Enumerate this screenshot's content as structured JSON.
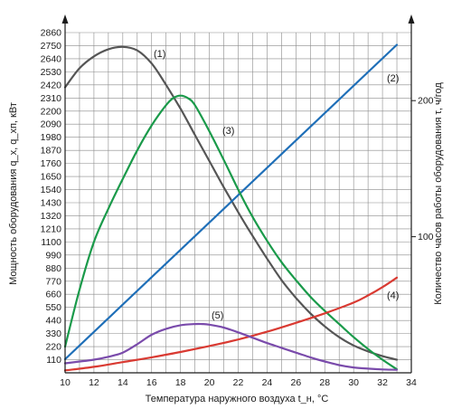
{
  "chart_data": {
    "type": "line",
    "xlabel": "Температура наружного воздуха t_н, °С",
    "ylabel_left": "Мощность оборудования q_х, q_хп, кВт",
    "ylabel_right": "Количество часов работы оборудования τ, ч/год",
    "xlim": [
      10,
      34
    ],
    "ylim_left": [
      0,
      2860
    ],
    "ylim_right": [
      0,
      250
    ],
    "x_ticks": [
      10,
      12,
      14,
      16,
      18,
      20,
      22,
      24,
      26,
      28,
      30,
      32,
      34
    ],
    "y_ticks_left": [
      110,
      220,
      330,
      440,
      550,
      660,
      770,
      880,
      990,
      1100,
      1210,
      1320,
      1430,
      1540,
      1650,
      1760,
      1870,
      1980,
      2090,
      2200,
      2310,
      2420,
      2530,
      2640,
      2750,
      2860
    ],
    "y_ticks_right": [
      100,
      200
    ],
    "grid": true,
    "series": [
      {
        "name": "(1)",
        "axis": "left",
        "color": "#555555",
        "x": [
          10,
          11,
          12,
          13,
          14,
          15,
          16,
          17,
          18,
          19,
          20,
          21,
          22,
          23,
          24,
          25,
          26,
          27,
          28,
          29,
          30,
          31,
          32,
          33
        ],
        "y": [
          2400,
          2560,
          2660,
          2720,
          2740,
          2710,
          2600,
          2420,
          2220,
          2000,
          1780,
          1560,
          1350,
          1150,
          960,
          780,
          630,
          500,
          390,
          300,
          230,
          180,
          140,
          110
        ]
      },
      {
        "name": "(2)",
        "axis": "right",
        "color": "#1f6fb8",
        "x": [
          10,
          33
        ],
        "y": [
          10,
          241
        ]
      },
      {
        "name": "(3)",
        "axis": "left",
        "color": "#1a9a4a",
        "x": [
          10,
          11,
          12,
          13,
          14,
          15,
          16,
          17,
          17.5,
          18,
          18.5,
          19,
          20,
          21,
          22,
          23,
          24,
          25,
          26,
          27,
          28,
          29,
          30,
          31,
          32,
          33
        ],
        "y": [
          220,
          700,
          1100,
          1380,
          1630,
          1870,
          2080,
          2250,
          2310,
          2330,
          2310,
          2250,
          2030,
          1790,
          1540,
          1310,
          1110,
          930,
          780,
          640,
          520,
          410,
          300,
          200,
          110,
          30
        ]
      },
      {
        "name": "(4)",
        "axis": "left",
        "color": "#d93a32",
        "x": [
          10,
          12,
          14,
          16,
          18,
          20,
          22,
          24,
          26,
          28,
          30,
          31,
          32,
          33
        ],
        "y": [
          20,
          50,
          90,
          130,
          175,
          225,
          280,
          345,
          420,
          500,
          590,
          650,
          720,
          800
        ]
      },
      {
        "name": "(5)",
        "axis": "left",
        "color": "#7a4bab",
        "x": [
          10,
          11,
          12,
          13,
          14,
          15,
          16,
          17,
          18,
          19,
          19.5,
          20,
          21,
          22,
          23,
          24,
          25,
          26,
          27,
          28,
          29,
          30,
          31,
          32,
          33
        ],
        "y": [
          80,
          95,
          110,
          135,
          170,
          240,
          320,
          370,
          400,
          410,
          410,
          405,
          380,
          340,
          295,
          250,
          210,
          170,
          130,
          95,
          65,
          45,
          35,
          28,
          25
        ]
      }
    ]
  }
}
